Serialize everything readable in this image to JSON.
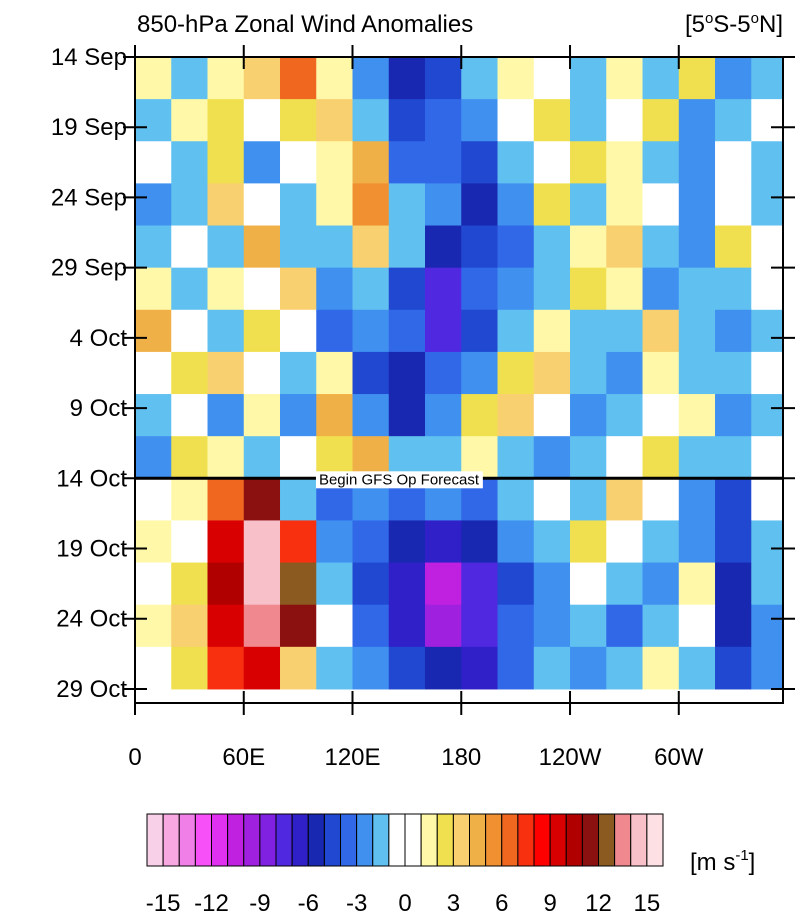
{
  "chart_data": {
    "type": "hovmoller",
    "title": "850-hPa Zonal Wind Anomalies",
    "region": [
      "[5",
      "o",
      "S-5",
      "o",
      "N]"
    ],
    "xlim": [
      0,
      357.5
    ],
    "ylim": [
      0,
      46
    ],
    "xticks": [
      0,
      {
        "value": 60,
        "label": "60E"
      },
      {
        "value": 120,
        "label": "120E"
      },
      180,
      {
        "value": 240,
        "label": "120W"
      },
      {
        "value": 300,
        "label": "60W"
      }
    ],
    "yticks": [
      {
        "value": 0,
        "label": "14 Sep"
      },
      {
        "value": 5,
        "label": "19 Sep"
      },
      {
        "value": 10,
        "label": "24 Sep"
      },
      {
        "value": 15,
        "label": "29 Sep"
      },
      {
        "value": 20,
        "label": "4 Oct"
      },
      {
        "value": 25,
        "label": "9 Oct"
      },
      {
        "value": 30,
        "label": "14 Oct"
      },
      {
        "value": 35,
        "label": "19 Oct"
      },
      {
        "value": 40,
        "label": "24 Oct"
      },
      {
        "value": 45,
        "label": "29 Oct"
      }
    ],
    "annotation": {
      "text": "Begin GFS Op Forecast",
      "y": 30
    },
    "field": {
      "lons": [
        10,
        30,
        50,
        70,
        90,
        110,
        130,
        150,
        170,
        190,
        210,
        230,
        250,
        270,
        290,
        310,
        330,
        350
      ],
      "days": [
        1.5,
        4.5,
        7.5,
        10.5,
        13.5,
        16.5,
        19.5,
        22.5,
        25.5,
        28.5,
        31.5,
        34.5,
        37.5,
        40.5,
        43.5
      ],
      "values": [
        [
          1,
          -2,
          1,
          3,
          6,
          1,
          -3,
          -6,
          -5,
          -2,
          1,
          -1,
          -2,
          1,
          -2,
          2,
          -3,
          -2
        ],
        [
          -2,
          1,
          2,
          -1,
          2,
          3,
          -2,
          -5,
          -4,
          -3,
          -1,
          2,
          -2,
          -1,
          2,
          -3,
          -2,
          -1
        ],
        [
          -1,
          -2,
          2,
          -3,
          -1,
          1,
          4,
          -4,
          -4,
          -5,
          -2,
          -1,
          2,
          1,
          -2,
          -3,
          -1,
          -2
        ],
        [
          -3,
          -2,
          3,
          -1,
          -2,
          1,
          5,
          -2,
          -3,
          -6,
          -3,
          2,
          -2,
          1,
          -1,
          -3,
          -1,
          -2
        ],
        [
          -2,
          -1,
          -2,
          4,
          -2,
          -2,
          3,
          -2,
          -6,
          -5,
          -4,
          -2,
          1,
          3,
          -2,
          -3,
          2,
          -1
        ],
        [
          1,
          -2,
          1,
          -1,
          3,
          -3,
          -2,
          -5,
          -8,
          -4,
          -3,
          -2,
          2,
          1,
          -3,
          -2,
          -2,
          -1
        ],
        [
          4,
          -1,
          -2,
          2,
          -1,
          -4,
          -3,
          -4,
          -8,
          -5,
          -2,
          1,
          -2,
          -2,
          3,
          -2,
          -3,
          -2
        ],
        [
          -1,
          2,
          3,
          -1,
          -2,
          1,
          -5,
          -6,
          -4,
          -3,
          2,
          3,
          -2,
          -3,
          1,
          -2,
          -2,
          -1
        ],
        [
          -2,
          -1,
          -3,
          1,
          -3,
          4,
          -3,
          -6,
          -3,
          2,
          3,
          -1,
          -3,
          -2,
          -1,
          1,
          -3,
          -2
        ],
        [
          -3,
          2,
          1,
          -2,
          -1,
          2,
          4,
          -2,
          -2,
          1,
          -2,
          -3,
          -2,
          -1,
          2,
          -2,
          -2,
          -1
        ],
        [
          -1,
          1,
          6,
          11,
          -2,
          -4,
          -3,
          -4,
          -3,
          -4,
          -2,
          -1,
          -2,
          3,
          -1,
          -3,
          -5,
          -1
        ],
        [
          1,
          -1,
          9,
          14,
          7,
          -3,
          -4,
          -6,
          -7,
          -6,
          -3,
          -2,
          2,
          -1,
          -2,
          -3,
          -5,
          -2
        ],
        [
          -1,
          2,
          10,
          14,
          12,
          -2,
          -5,
          -7,
          -11,
          -8,
          -5,
          -3,
          -1,
          -2,
          -3,
          1,
          -6,
          -2
        ],
        [
          1,
          3,
          9,
          13,
          11,
          -1,
          -4,
          -7,
          -10,
          -8,
          -4,
          -3,
          -2,
          -4,
          -2,
          -1,
          -6,
          -3
        ],
        [
          -1,
          2,
          7,
          9,
          3,
          -2,
          -3,
          -5,
          -6,
          -7,
          -4,
          -2,
          -3,
          -2,
          1,
          -2,
          -5,
          -3
        ]
      ]
    },
    "colorbar": {
      "lim": [
        -16,
        16
      ],
      "ticks": [
        -15,
        -12,
        -9,
        -6,
        -3,
        0,
        3,
        6,
        9,
        12,
        15
      ],
      "units": [
        "[m s",
        "-1",
        "]"
      ],
      "colors": [
        "#f8d0e8",
        "#f8a8e0",
        "#f080e8",
        "#f850f8",
        "#e030f0",
        "#c020e0",
        "#a020e0",
        "#8020e0",
        "#5028e0",
        "#3020c8",
        "#1828b0",
        "#2048d0",
        "#3068e8",
        "#4090f0",
        "#60c0f0",
        "#ffffff",
        "#ffffff",
        "#fff8a8",
        "#f0e050",
        "#f8d070",
        "#f0b048",
        "#f09030",
        "#f06820",
        "#f83010",
        "#ff0000",
        "#d80000",
        "#b00000",
        "#8b1010",
        "#8b5a20",
        "#f08890",
        "#f8c0c8",
        "#fde0e4"
      ]
    }
  }
}
